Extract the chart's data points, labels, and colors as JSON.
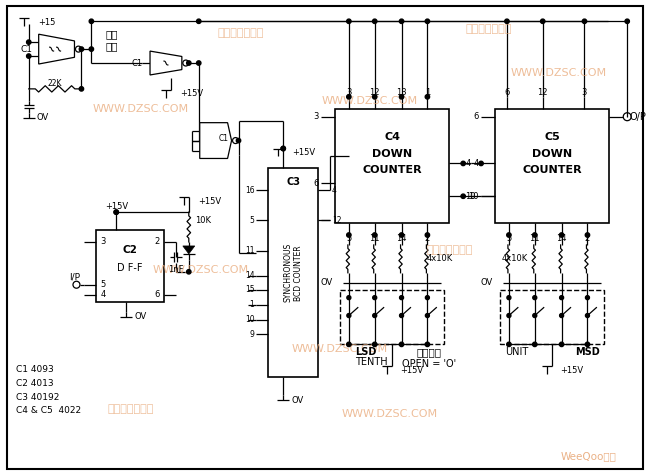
{
  "bg_color": "#FFFFFF",
  "watermark_color": "#E8A878",
  "watermark_text1": "维库电子市场网",
  "watermark_text2": "WWW.DZSC.COM",
  "watermark_text3": "WeeQoo维库",
  "label_clock": "时钟\n脉冲",
  "label_open": "OPEN = 'O'",
  "label_bianma": "编码开关",
  "legend_c1": "C1 4093",
  "legend_c2": "C2 4013",
  "legend_c3": "C3 40192",
  "legend_c45": "C4 & C5  4022"
}
